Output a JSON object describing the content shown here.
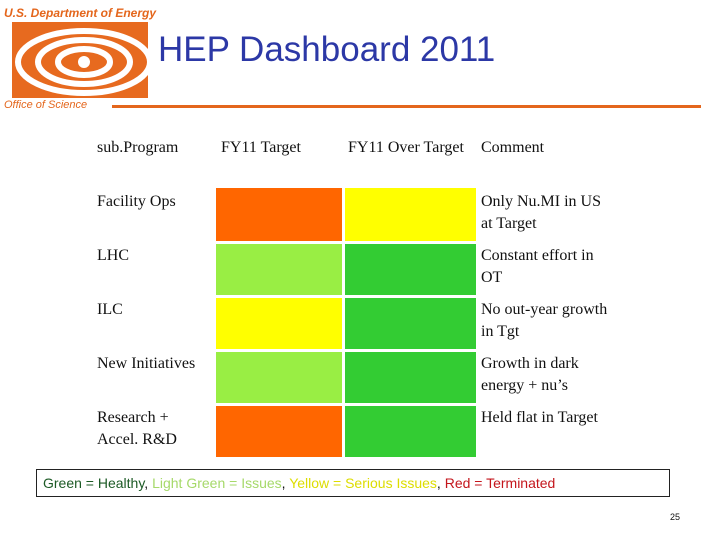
{
  "header": {
    "organization": "U.S. Department of Energy",
    "title": "HEP Dashboard 2011",
    "office": "Office of Science"
  },
  "colors": {
    "accent": "#e4661c",
    "title": "#2c38a6",
    "healthy": "#33cc33",
    "issues": "#99ee44",
    "serious": "#ffff00",
    "terminated": "#ff6600"
  },
  "table": {
    "headers": [
      "sub.Program",
      "FY11 Target",
      "FY11 Over Target",
      "Comment"
    ],
    "rows": [
      {
        "program": "Facility Ops",
        "target_status": "terminated",
        "over_target_status": "serious",
        "comment": "Only Nu.MI in US at Target"
      },
      {
        "program": "LHC",
        "target_status": "issues",
        "over_target_status": "healthy",
        "comment": "Constant effort in OT"
      },
      {
        "program": "ILC",
        "target_status": "serious",
        "over_target_status": "healthy",
        "comment": "No out-year growth in Tgt"
      },
      {
        "program": "New Initiatives",
        "target_status": "issues",
        "over_target_status": "healthy",
        "comment": "Growth in dark energy + nu’s"
      },
      {
        "program": "Research + Accel. R&D",
        "target_status": "terminated",
        "over_target_status": "healthy",
        "comment": "Held flat in Target"
      }
    ]
  },
  "legend": [
    {
      "text": "Green = Healthy",
      "color": "#1c5a25"
    },
    {
      "text": ", ",
      "color": "#111111"
    },
    {
      "text": "Light Green = Issues",
      "color": "#a6d96a"
    },
    {
      "text": ", ",
      "color": "#111111"
    },
    {
      "text": "Yellow = Serious Issues",
      "color": "#dddd00"
    },
    {
      "text": ", ",
      "color": "#111111"
    },
    {
      "text": "Red = Terminated",
      "color": "#c4161c"
    }
  ],
  "page_number": "25"
}
